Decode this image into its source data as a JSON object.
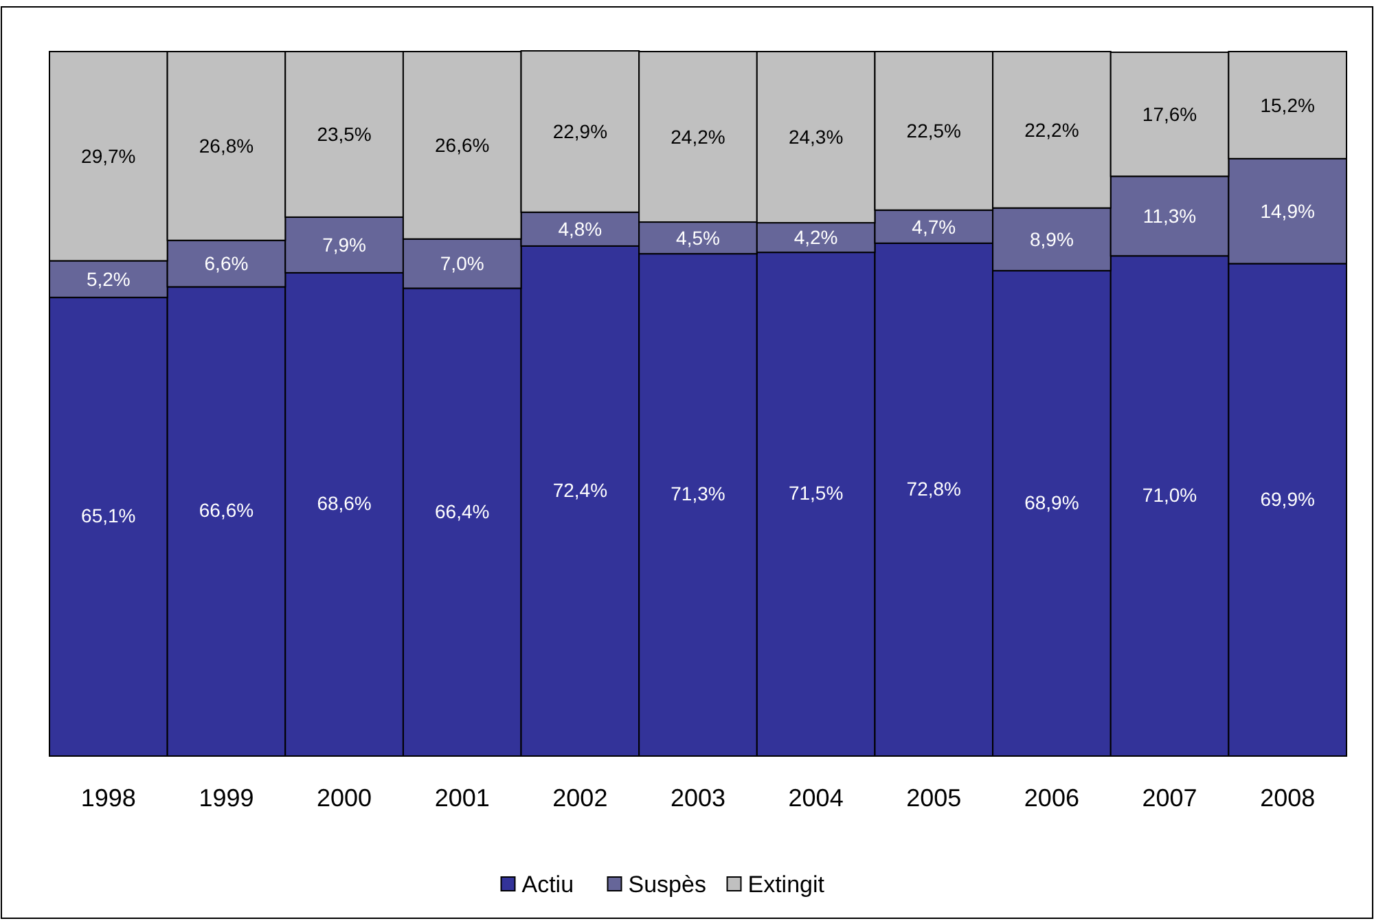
{
  "chart_data": {
    "type": "bar",
    "stacked": true,
    "legend": "bottom",
    "categories": [
      "1998",
      "1999",
      "2000",
      "2001",
      "2002",
      "2003",
      "2004",
      "2005",
      "2006",
      "2007",
      "2008"
    ],
    "series": [
      {
        "name": "Actiu",
        "color": "#333399",
        "values": [
          65.1,
          66.6,
          68.6,
          66.4,
          72.4,
          71.3,
          71.5,
          72.8,
          68.9,
          71.0,
          69.9
        ],
        "value_labels": [
          "65,1%",
          "66,6%",
          "68,6%",
          "66,4%",
          "72,4%",
          "71,3%",
          "71,5%",
          "72,8%",
          "68,9%",
          "71,0%",
          "69,9%"
        ]
      },
      {
        "name": "Suspès",
        "color": "#666699",
        "values": [
          5.2,
          6.6,
          7.9,
          7.0,
          4.8,
          4.5,
          4.2,
          4.7,
          8.9,
          11.3,
          14.9
        ],
        "value_labels": [
          "5,2%",
          "6,6%",
          "7,9%",
          "7,0%",
          "4,8%",
          "4,5%",
          "4,2%",
          "4,7%",
          "8,9%",
          "11,3%",
          "14,9%"
        ]
      },
      {
        "name": "Extingit",
        "color": "#c0c0c0",
        "values": [
          29.7,
          26.8,
          23.5,
          26.6,
          22.9,
          24.2,
          24.3,
          22.5,
          22.2,
          17.6,
          15.2
        ],
        "value_labels": [
          "29,7%",
          "26,8%",
          "23,5%",
          "26,6%",
          "22,9%",
          "24,2%",
          "24,3%",
          "22,5%",
          "22,2%",
          "17,6%",
          "15,2%"
        ]
      }
    ]
  }
}
